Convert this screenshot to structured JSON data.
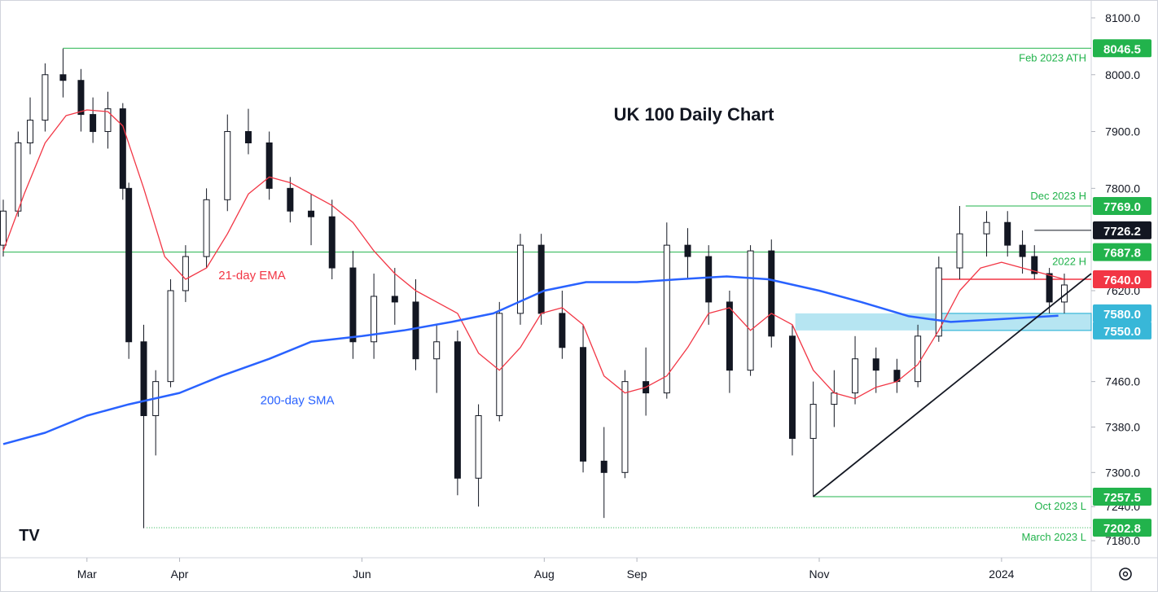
{
  "chart_data": {
    "type": "candlestick",
    "title": "UK 100 Daily Chart",
    "ylim": [
      7150,
      8120
    ],
    "x_range": [
      "2023-02-01",
      "2024-01-31"
    ],
    "y_ticks": [
      {
        "value": 8100,
        "label": "8100.0"
      },
      {
        "value": 8000,
        "label": "8000.0"
      },
      {
        "value": 7900,
        "label": "7900.0"
      },
      {
        "value": 7800,
        "label": "7800.0"
      },
      {
        "value": 7620,
        "label": "7620.0"
      },
      {
        "value": 7460,
        "label": "7460.0"
      },
      {
        "value": 7380,
        "label": "7380.0"
      },
      {
        "value": 7300,
        "label": "7300.0"
      },
      {
        "value": 7240,
        "label": "7240.0"
      },
      {
        "value": 7180,
        "label": "7180.0"
      }
    ],
    "x_ticks": [
      {
        "date": "2023-03-01",
        "label": "Mar"
      },
      {
        "date": "2023-04-01",
        "label": "Apr"
      },
      {
        "date": "2023-06-01",
        "label": "Jun"
      },
      {
        "date": "2023-08-01",
        "label": "Aug"
      },
      {
        "date": "2023-09-01",
        "label": "Sep"
      },
      {
        "date": "2023-11-01",
        "label": "Nov"
      },
      {
        "date": "2024-01-01",
        "label": "2024"
      }
    ],
    "price_badges": [
      {
        "value": 8046.5,
        "label": "8046.5",
        "color": "#22b34c"
      },
      {
        "value": 7769.0,
        "label": "7769.0",
        "color": "#22b34c"
      },
      {
        "value": 7726.2,
        "label": "7726.2",
        "color": "#131722"
      },
      {
        "value": 7687.8,
        "label": "7687.8",
        "color": "#22b34c"
      },
      {
        "value": 7640.0,
        "label": "7640.0",
        "color": "#f23645"
      },
      {
        "value": 7580.0,
        "label": "7580.0",
        "color": "#38b7d8"
      },
      {
        "value": 7550.0,
        "label": "7550.0",
        "color": "#38b7d8"
      },
      {
        "value": 7257.5,
        "label": "7257.5",
        "color": "#22b34c"
      },
      {
        "value": 7202.8,
        "label": "7202.8",
        "color": "#22b34c"
      }
    ],
    "levels": [
      {
        "name": "Feb 2023 ATH",
        "value": 8046.5,
        "from": "2023-02-21",
        "color": "#22b34c"
      },
      {
        "name": "Dec 2023 H",
        "value": 7769.0,
        "from": "2023-12-20",
        "color": "#22b34c"
      },
      {
        "name": "2022 H",
        "value": 7687.8,
        "from": "2023-02-01",
        "color": "#22b34c"
      },
      {
        "name": "Oct 2023 L",
        "value": 7257.5,
        "from": "2023-10-30",
        "color": "#22b34c"
      },
      {
        "name": "March 2023 L",
        "value": 7202.8,
        "from": "2023-03-21",
        "color": "#22b34c",
        "dotted": true
      },
      {
        "name": "",
        "value": 7726.2,
        "from": "2024-01-12",
        "color": "#131722"
      },
      {
        "name": "",
        "value": 7640.0,
        "from": "2023-12-11",
        "color": "#f23645"
      }
    ],
    "support_zone": {
      "low": 7550,
      "high": 7580,
      "from": "2023-10-24",
      "to": "2024-01-31",
      "color": "#a9e1f0"
    },
    "support_zone_inner": {
      "low": 7550,
      "high": 7580,
      "from": "2023-12-11",
      "to": "2024-01-31"
    },
    "trendline": {
      "from": {
        "date": "2023-10-30",
        "value": 7257.5
      },
      "to": {
        "date": "2024-01-31",
        "value": 7650
      }
    },
    "series": [
      {
        "name": "21-day EMA",
        "color": "#f23645",
        "points": [
          [
            "2023-02-01",
            7690
          ],
          [
            "2023-02-08",
            7790
          ],
          [
            "2023-02-15",
            7880
          ],
          [
            "2023-02-22",
            7928
          ],
          [
            "2023-03-01",
            7938
          ],
          [
            "2023-03-08",
            7935
          ],
          [
            "2023-03-13",
            7910
          ],
          [
            "2023-03-20",
            7800
          ],
          [
            "2023-03-27",
            7680
          ],
          [
            "2023-04-03",
            7640
          ],
          [
            "2023-04-10",
            7660
          ],
          [
            "2023-04-17",
            7720
          ],
          [
            "2023-04-24",
            7790
          ],
          [
            "2023-05-01",
            7820
          ],
          [
            "2023-05-08",
            7810
          ],
          [
            "2023-05-15",
            7790
          ],
          [
            "2023-05-22",
            7770
          ],
          [
            "2023-05-29",
            7740
          ],
          [
            "2023-06-05",
            7690
          ],
          [
            "2023-06-12",
            7650
          ],
          [
            "2023-06-19",
            7620
          ],
          [
            "2023-06-26",
            7600
          ],
          [
            "2023-07-03",
            7580
          ],
          [
            "2023-07-10",
            7510
          ],
          [
            "2023-07-17",
            7480
          ],
          [
            "2023-07-24",
            7520
          ],
          [
            "2023-07-31",
            7580
          ],
          [
            "2023-08-07",
            7590
          ],
          [
            "2023-08-14",
            7560
          ],
          [
            "2023-08-21",
            7470
          ],
          [
            "2023-08-28",
            7440
          ],
          [
            "2023-09-04",
            7450
          ],
          [
            "2023-09-11",
            7470
          ],
          [
            "2023-09-18",
            7520
          ],
          [
            "2023-09-25",
            7580
          ],
          [
            "2023-10-02",
            7590
          ],
          [
            "2023-10-09",
            7550
          ],
          [
            "2023-10-16",
            7580
          ],
          [
            "2023-10-23",
            7560
          ],
          [
            "2023-10-30",
            7480
          ],
          [
            "2023-11-06",
            7440
          ],
          [
            "2023-11-13",
            7430
          ],
          [
            "2023-11-20",
            7450
          ],
          [
            "2023-11-27",
            7460
          ],
          [
            "2023-12-04",
            7490
          ],
          [
            "2023-12-11",
            7550
          ],
          [
            "2023-12-18",
            7620
          ],
          [
            "2023-12-25",
            7660
          ],
          [
            "2024-01-01",
            7670
          ],
          [
            "2024-01-08",
            7660
          ],
          [
            "2024-01-15",
            7650
          ],
          [
            "2024-01-22",
            7640
          ]
        ]
      },
      {
        "name": "200-day SMA",
        "color": "#2962ff",
        "points": [
          [
            "2023-02-01",
            7350
          ],
          [
            "2023-02-15",
            7370
          ],
          [
            "2023-03-01",
            7400
          ],
          [
            "2023-03-15",
            7420
          ],
          [
            "2023-04-01",
            7440
          ],
          [
            "2023-04-15",
            7470
          ],
          [
            "2023-05-01",
            7500
          ],
          [
            "2023-05-15",
            7530
          ],
          [
            "2023-06-01",
            7540
          ],
          [
            "2023-06-15",
            7550
          ],
          [
            "2023-07-01",
            7565
          ],
          [
            "2023-07-15",
            7580
          ],
          [
            "2023-08-01",
            7620
          ],
          [
            "2023-08-15",
            7635
          ],
          [
            "2023-09-01",
            7635
          ],
          [
            "2023-09-15",
            7640
          ],
          [
            "2023-10-01",
            7645
          ],
          [
            "2023-10-15",
            7640
          ],
          [
            "2023-11-01",
            7620
          ],
          [
            "2023-11-15",
            7600
          ],
          [
            "2023-12-01",
            7575
          ],
          [
            "2023-12-15",
            7565
          ],
          [
            "2024-01-01",
            7570
          ],
          [
            "2024-01-20",
            7576
          ]
        ]
      }
    ],
    "annotations": [
      {
        "text": "21-day EMA",
        "date": "2023-04-14",
        "value": 7640,
        "color": "#f23645"
      },
      {
        "text": "200-day SMA",
        "date": "2023-04-28",
        "value": 7420,
        "color": "#2962ff"
      }
    ],
    "candles": [
      [
        "2023-02-01",
        7700,
        7780,
        7680,
        7760
      ],
      [
        "2023-02-06",
        7760,
        7900,
        7750,
        7880
      ],
      [
        "2023-02-10",
        7880,
        7960,
        7860,
        7920
      ],
      [
        "2023-02-15",
        7920,
        8020,
        7900,
        8000
      ],
      [
        "2023-02-21",
        8000,
        8046,
        7960,
        7990
      ],
      [
        "2023-02-27",
        7990,
        8010,
        7900,
        7930
      ],
      [
        "2023-03-03",
        7930,
        7960,
        7880,
        7900
      ],
      [
        "2023-03-08",
        7900,
        7970,
        7870,
        7940
      ],
      [
        "2023-03-13",
        7940,
        7950,
        7780,
        7800
      ],
      [
        "2023-03-15",
        7800,
        7810,
        7500,
        7530
      ],
      [
        "2023-03-20",
        7530,
        7560,
        7202,
        7400
      ],
      [
        "2023-03-24",
        7400,
        7480,
        7330,
        7460
      ],
      [
        "2023-03-29",
        7460,
        7640,
        7450,
        7620
      ],
      [
        "2023-04-03",
        7620,
        7700,
        7600,
        7680
      ],
      [
        "2023-04-10",
        7680,
        7800,
        7660,
        7780
      ],
      [
        "2023-04-17",
        7780,
        7930,
        7760,
        7900
      ],
      [
        "2023-04-24",
        7900,
        7940,
        7860,
        7880
      ],
      [
        "2023-05-01",
        7880,
        7900,
        7780,
        7800
      ],
      [
        "2023-05-08",
        7800,
        7820,
        7740,
        7760
      ],
      [
        "2023-05-15",
        7760,
        7790,
        7700,
        7750
      ],
      [
        "2023-05-22",
        7750,
        7780,
        7640,
        7660
      ],
      [
        "2023-05-29",
        7660,
        7690,
        7500,
        7530
      ],
      [
        "2023-06-05",
        7530,
        7650,
        7500,
        7610
      ],
      [
        "2023-06-12",
        7610,
        7660,
        7560,
        7600
      ],
      [
        "2023-06-19",
        7600,
        7640,
        7480,
        7500
      ],
      [
        "2023-06-26",
        7500,
        7560,
        7440,
        7530
      ],
      [
        "2023-07-03",
        7530,
        7550,
        7260,
        7290
      ],
      [
        "2023-07-10",
        7290,
        7420,
        7240,
        7400
      ],
      [
        "2023-07-17",
        7400,
        7600,
        7390,
        7580
      ],
      [
        "2023-07-24",
        7580,
        7720,
        7560,
        7700
      ],
      [
        "2023-07-31",
        7700,
        7720,
        7560,
        7580
      ],
      [
        "2023-08-07",
        7580,
        7620,
        7500,
        7520
      ],
      [
        "2023-08-14",
        7520,
        7560,
        7300,
        7320
      ],
      [
        "2023-08-21",
        7320,
        7380,
        7220,
        7300
      ],
      [
        "2023-08-28",
        7300,
        7480,
        7290,
        7460
      ],
      [
        "2023-09-04",
        7460,
        7520,
        7400,
        7440
      ],
      [
        "2023-09-11",
        7440,
        7740,
        7430,
        7700
      ],
      [
        "2023-09-18",
        7700,
        7730,
        7640,
        7680
      ],
      [
        "2023-09-25",
        7680,
        7700,
        7560,
        7600
      ],
      [
        "2023-10-02",
        7600,
        7620,
        7440,
        7480
      ],
      [
        "2023-10-09",
        7480,
        7700,
        7470,
        7690
      ],
      [
        "2023-10-16",
        7690,
        7710,
        7520,
        7540
      ],
      [
        "2023-10-23",
        7540,
        7560,
        7330,
        7360
      ],
      [
        "2023-10-30",
        7360,
        7460,
        7257,
        7420
      ],
      [
        "2023-11-06",
        7420,
        7480,
        7380,
        7440
      ],
      [
        "2023-11-13",
        7440,
        7540,
        7420,
        7500
      ],
      [
        "2023-11-20",
        7500,
        7520,
        7440,
        7480
      ],
      [
        "2023-11-27",
        7480,
        7500,
        7440,
        7460
      ],
      [
        "2023-12-04",
        7460,
        7560,
        7450,
        7540
      ],
      [
        "2023-12-11",
        7540,
        7680,
        7530,
        7660
      ],
      [
        "2023-12-18",
        7660,
        7769,
        7640,
        7720
      ],
      [
        "2023-12-27",
        7720,
        7760,
        7680,
        7740
      ],
      [
        "2024-01-03",
        7740,
        7760,
        7680,
        7700
      ],
      [
        "2024-01-08",
        7700,
        7726,
        7650,
        7680
      ],
      [
        "2024-01-12",
        7680,
        7700,
        7640,
        7650
      ],
      [
        "2024-01-17",
        7650,
        7660,
        7580,
        7600
      ],
      [
        "2024-01-22",
        7600,
        7650,
        7580,
        7630
      ]
    ]
  },
  "ui": {
    "logo_text": "TV"
  }
}
